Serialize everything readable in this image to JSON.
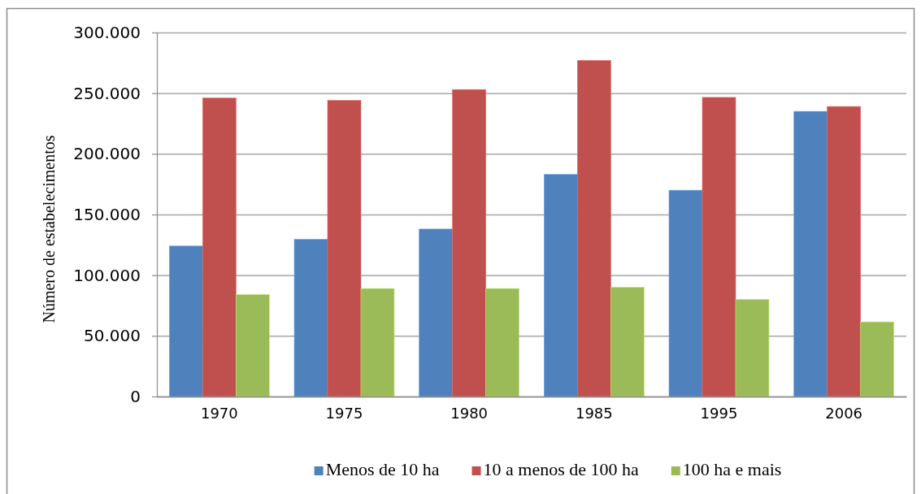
{
  "chart_data": {
    "type": "bar",
    "ylabel": "Número de estabelecimentos",
    "categories": [
      "1970",
      "1975",
      "1980",
      "1985",
      "1995",
      "2006"
    ],
    "series": [
      {
        "name": "Menos de 10 ha",
        "color": "#4f81bd",
        "values": [
          124000,
          129500,
          138000,
          183000,
          170000,
          235000
        ]
      },
      {
        "name": "10 a menos de 100 ha",
        "color": "#c0504d",
        "values": [
          246000,
          244000,
          253000,
          277000,
          246500,
          239000
        ]
      },
      {
        "name": "100 ha e mais",
        "color": "#9bbb59",
        "values": [
          84000,
          89000,
          89000,
          90000,
          80000,
          61500
        ]
      }
    ],
    "ylim": [
      0,
      300000
    ],
    "yticks": [
      {
        "value": 0,
        "label": "0"
      },
      {
        "value": 50000,
        "label": "50.000"
      },
      {
        "value": 100000,
        "label": "100.000"
      },
      {
        "value": 150000,
        "label": "150.000"
      },
      {
        "value": 200000,
        "label": "200.000"
      },
      {
        "value": 250000,
        "label": "250.000"
      },
      {
        "value": 300000,
        "label": "300.000"
      }
    ],
    "grid": "y",
    "legend": "bottom"
  }
}
